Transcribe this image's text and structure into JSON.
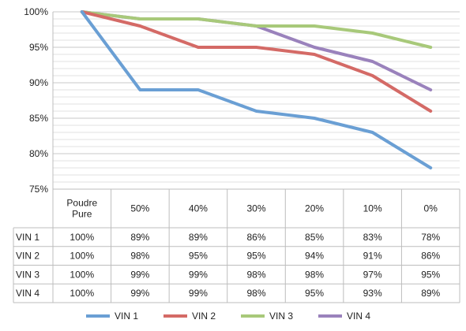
{
  "chart_data": {
    "type": "line",
    "categories": [
      "Poudre Pure",
      "50%",
      "40%",
      "30%",
      "20%",
      "10%",
      "0%"
    ],
    "category_lines": [
      [
        "Poudre",
        "Pure"
      ],
      [
        "50%"
      ],
      [
        "40%"
      ],
      [
        "30%"
      ],
      [
        "20%"
      ],
      [
        "10%"
      ],
      [
        "0%"
      ]
    ],
    "y_ticks": [
      "100%",
      "95%",
      "90%",
      "85%",
      "80%",
      "75%"
    ],
    "ylim": [
      75,
      100
    ],
    "grid": true,
    "legend_position": "bottom",
    "data_table": true,
    "series": [
      {
        "name": "VIN 1",
        "color": "#6a9fd4",
        "values": [
          100,
          89,
          89,
          86,
          85,
          83,
          78
        ],
        "labels": [
          "100%",
          "89%",
          "89%",
          "86%",
          "85%",
          "83%",
          "78%"
        ]
      },
      {
        "name": "VIN 2",
        "color": "#d46a66",
        "values": [
          100,
          98,
          95,
          95,
          94,
          91,
          86
        ],
        "labels": [
          "100%",
          "98%",
          "95%",
          "95%",
          "94%",
          "91%",
          "86%"
        ]
      },
      {
        "name": "VIN 3",
        "color": "#a8c97a",
        "values": [
          100,
          99,
          99,
          98,
          98,
          97,
          95
        ],
        "labels": [
          "100%",
          "99%",
          "99%",
          "98%",
          "98%",
          "97%",
          "95%"
        ]
      },
      {
        "name": "VIN 4",
        "color": "#9a82bc",
        "values": [
          100,
          99,
          99,
          98,
          95,
          93,
          89
        ],
        "labels": [
          "100%",
          "99%",
          "99%",
          "98%",
          "95%",
          "93%",
          "89%"
        ]
      }
    ]
  }
}
